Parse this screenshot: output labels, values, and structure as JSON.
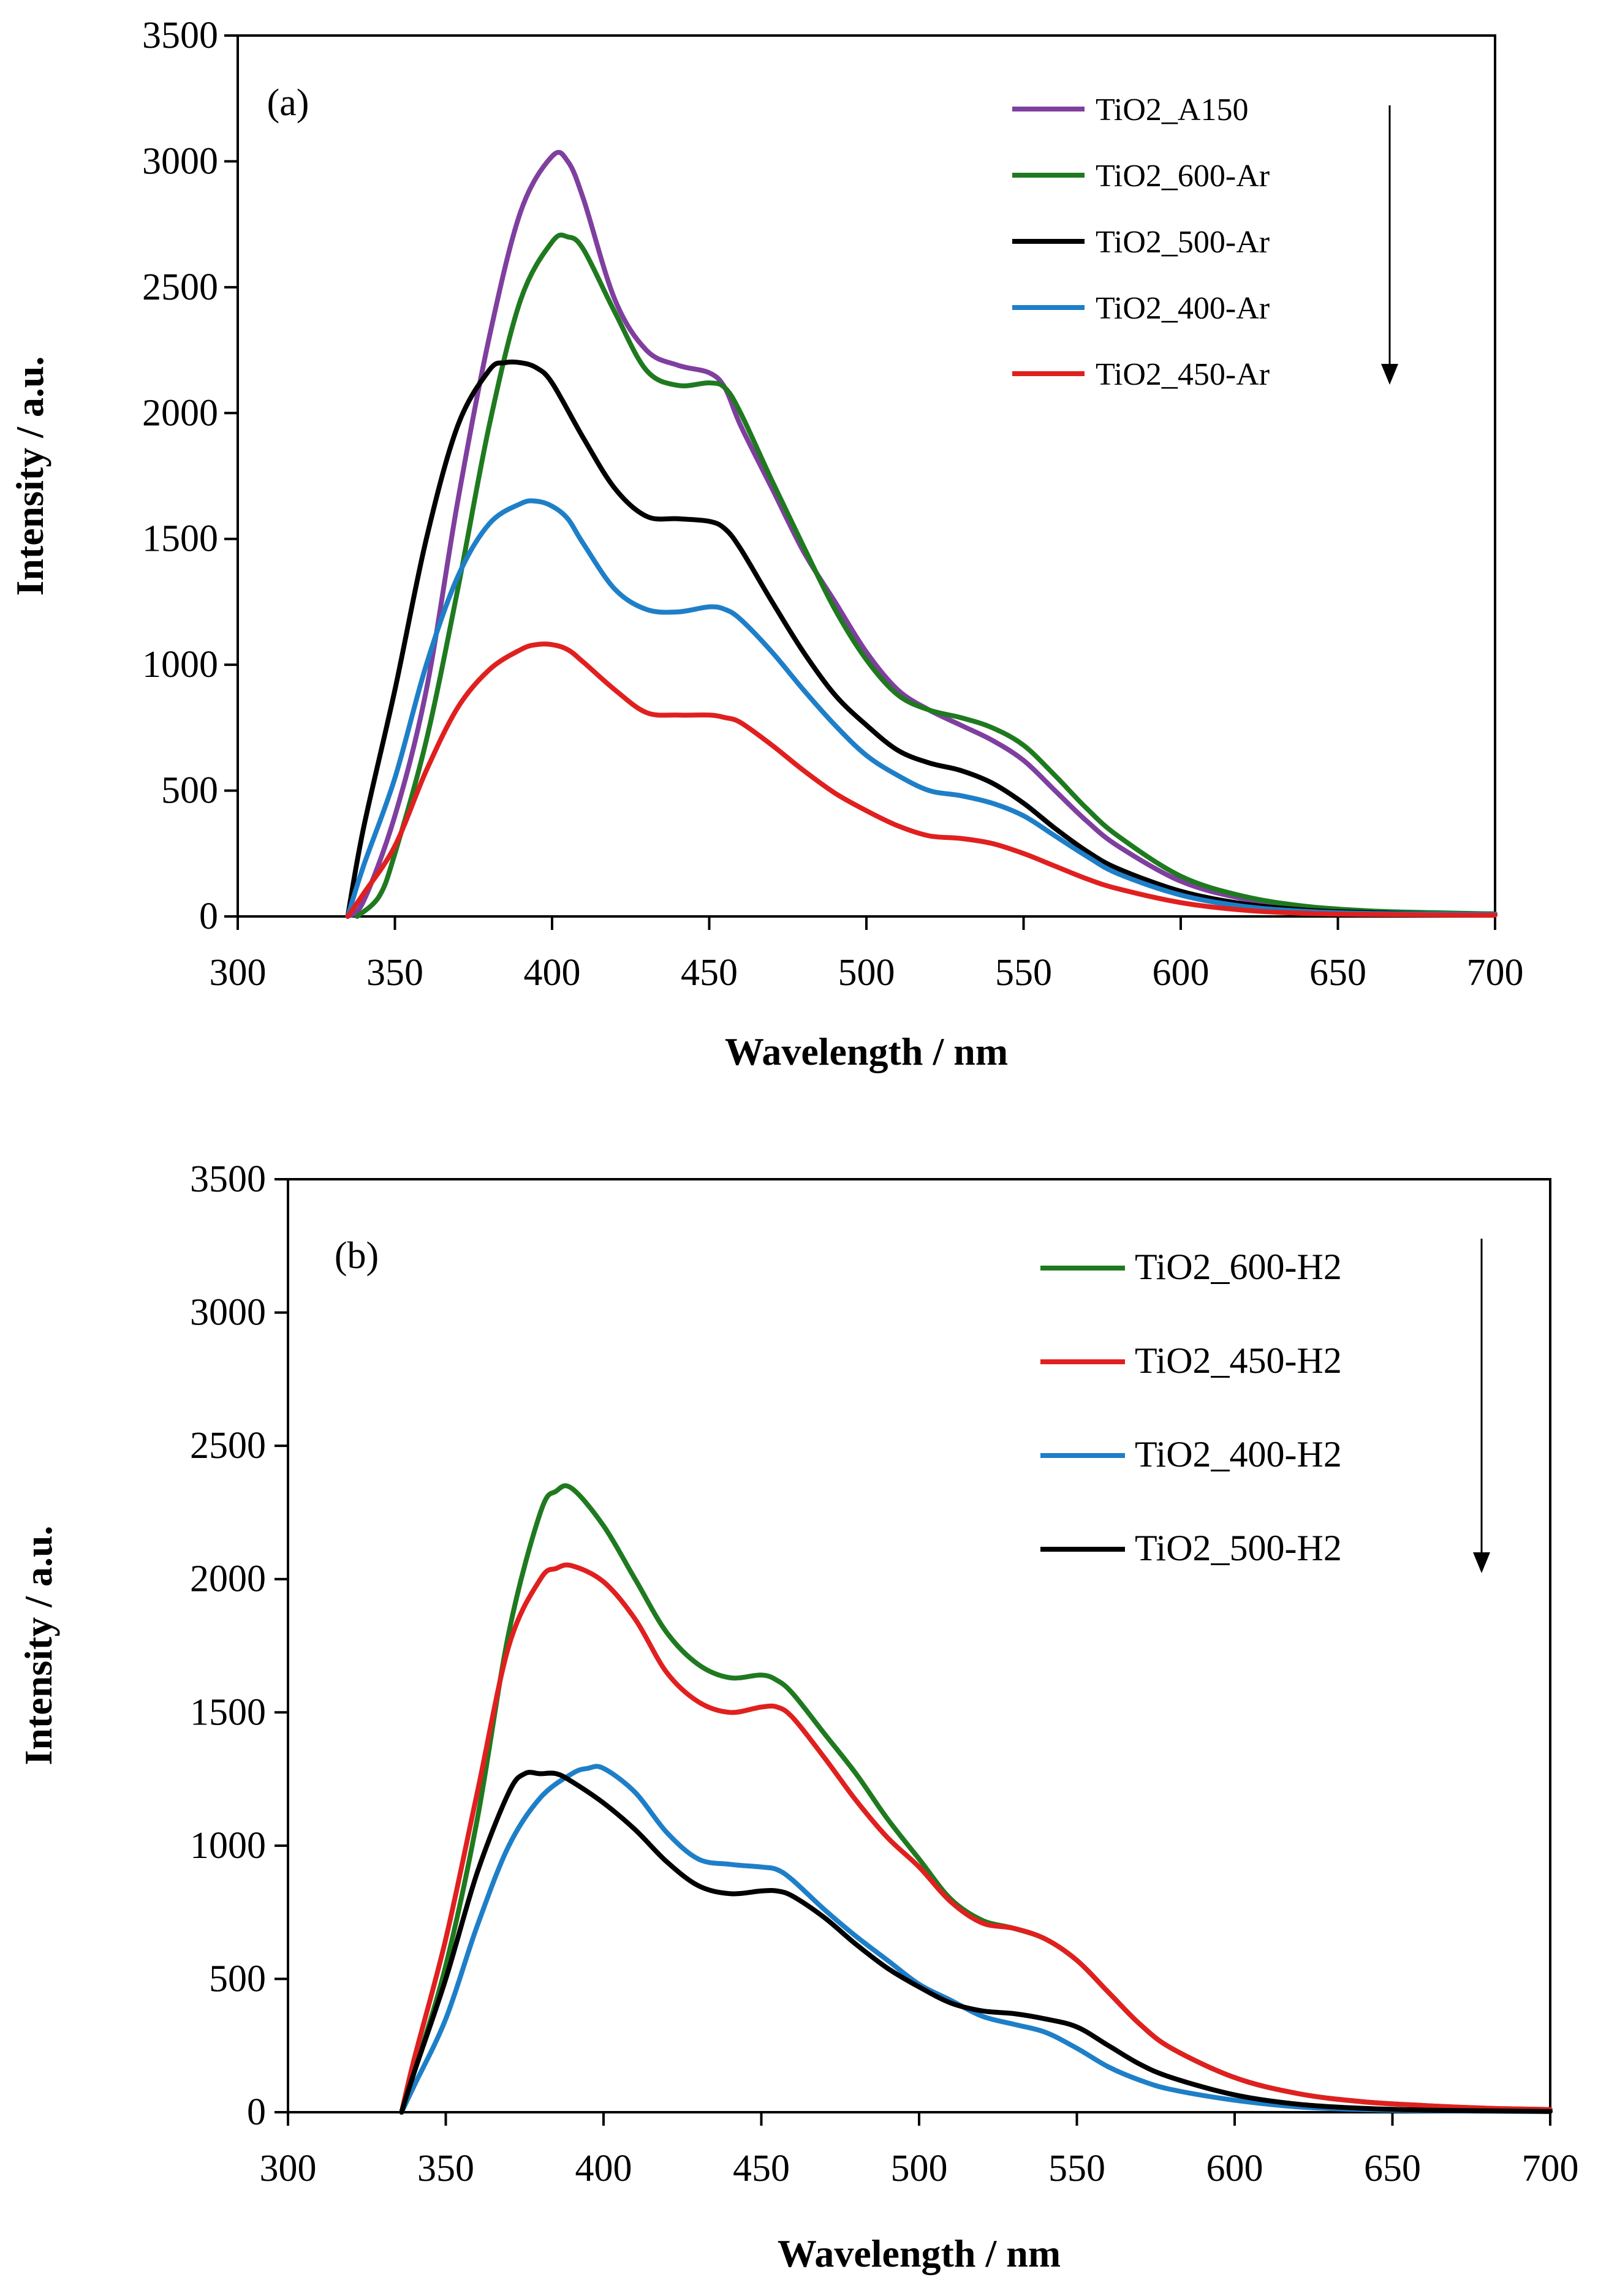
{
  "chart_data": [
    {
      "panel": "(a)",
      "type": "line",
      "xlabel": "Wavelength / nm",
      "ylabel": "Intensity / a.u.",
      "xlim": [
        300,
        700
      ],
      "ylim": [
        0,
        3500
      ],
      "xticks": [
        300,
        350,
        400,
        450,
        500,
        550,
        600,
        650,
        700
      ],
      "yticks": [
        0,
        500,
        1000,
        1500,
        2000,
        2500,
        3000,
        3500
      ],
      "grid": false,
      "legend_position": "top-right",
      "legend_arrow": "downward arrow to the right of legend",
      "series": [
        {
          "name": "TiO2_A150",
          "color": "#7f3f9f",
          "x": [
            335,
            340,
            350,
            360,
            370,
            380,
            390,
            400,
            405,
            410,
            420,
            430,
            440,
            450,
            455,
            460,
            470,
            480,
            490,
            500,
            510,
            520,
            530,
            540,
            550,
            560,
            570,
            580,
            600,
            620,
            640,
            660,
            680,
            700
          ],
          "y": [
            0,
            60,
            400,
            900,
            1650,
            2300,
            2800,
            3020,
            3000,
            2850,
            2450,
            2250,
            2190,
            2160,
            2100,
            1950,
            1700,
            1450,
            1250,
            1050,
            900,
            820,
            760,
            700,
            620,
            500,
            380,
            280,
            140,
            70,
            35,
            20,
            12,
            10
          ]
        },
        {
          "name": "TiO2_600-Ar",
          "color": "#1f7a1f",
          "x": [
            338,
            345,
            350,
            360,
            370,
            380,
            390,
            400,
            405,
            410,
            420,
            430,
            440,
            450,
            455,
            460,
            470,
            480,
            490,
            500,
            510,
            520,
            530,
            540,
            550,
            560,
            570,
            580,
            600,
            620,
            640,
            660,
            680,
            700
          ],
          "y": [
            0,
            80,
            250,
            700,
            1300,
            1950,
            2450,
            2680,
            2700,
            2650,
            2400,
            2170,
            2110,
            2120,
            2100,
            2000,
            1730,
            1470,
            1220,
            1020,
            880,
            820,
            790,
            750,
            680,
            560,
            430,
            320,
            160,
            80,
            40,
            22,
            15,
            10
          ]
        },
        {
          "name": "TiO2_500-Ar",
          "color": "#000000",
          "x": [
            335,
            340,
            350,
            360,
            370,
            380,
            385,
            390,
            395,
            400,
            410,
            420,
            430,
            440,
            450,
            455,
            460,
            470,
            480,
            490,
            500,
            510,
            520,
            530,
            540,
            550,
            560,
            570,
            580,
            600,
            620,
            640,
            660,
            680,
            700
          ],
          "y": [
            0,
            350,
            900,
            1500,
            1950,
            2170,
            2200,
            2200,
            2180,
            2120,
            1900,
            1700,
            1590,
            1580,
            1570,
            1540,
            1460,
            1250,
            1050,
            880,
            760,
            660,
            610,
            580,
            530,
            450,
            350,
            260,
            190,
            100,
            50,
            25,
            15,
            10,
            8
          ]
        },
        {
          "name": "TiO2_400-Ar",
          "color": "#1e7fc8",
          "x": [
            335,
            340,
            350,
            360,
            370,
            380,
            390,
            395,
            400,
            405,
            410,
            420,
            430,
            440,
            450,
            455,
            460,
            470,
            480,
            490,
            500,
            510,
            520,
            530,
            540,
            550,
            560,
            570,
            580,
            600,
            620,
            640,
            660,
            680,
            700
          ],
          "y": [
            0,
            200,
            550,
            1000,
            1350,
            1560,
            1640,
            1650,
            1630,
            1580,
            1480,
            1300,
            1220,
            1210,
            1230,
            1220,
            1180,
            1050,
            900,
            760,
            640,
            560,
            500,
            480,
            450,
            400,
            320,
            240,
            170,
            85,
            40,
            20,
            12,
            10,
            8
          ]
        },
        {
          "name": "TiO2_450-Ar",
          "color": "#e0201f",
          "x": [
            335,
            340,
            350,
            360,
            370,
            380,
            390,
            395,
            400,
            405,
            410,
            420,
            430,
            440,
            450,
            455,
            460,
            470,
            480,
            490,
            500,
            510,
            520,
            530,
            540,
            550,
            560,
            570,
            580,
            600,
            620,
            640,
            660,
            680,
            700
          ],
          "y": [
            0,
            90,
            280,
            580,
            830,
            980,
            1060,
            1080,
            1080,
            1060,
            1010,
            900,
            810,
            800,
            800,
            790,
            770,
            680,
            580,
            490,
            420,
            360,
            320,
            310,
            290,
            250,
            200,
            150,
            110,
            55,
            25,
            12,
            8,
            6,
            5
          ]
        }
      ]
    },
    {
      "panel": "(b)",
      "type": "line",
      "xlabel": "Wavelength / nm",
      "ylabel": "Intensity / a.u.",
      "xlim": [
        300,
        700
      ],
      "ylim": [
        0,
        3500
      ],
      "xticks": [
        300,
        350,
        400,
        450,
        500,
        550,
        600,
        650,
        700
      ],
      "yticks": [
        0,
        500,
        1000,
        1500,
        2000,
        2500,
        3000,
        3500
      ],
      "grid": false,
      "legend_position": "top-right",
      "legend_arrow": "downward arrow to the right of legend",
      "series": [
        {
          "name": "TiO2_600-H2",
          "color": "#1f7a1f",
          "x": [
            336,
            340,
            350,
            360,
            370,
            380,
            385,
            390,
            400,
            410,
            420,
            430,
            440,
            450,
            455,
            460,
            470,
            480,
            490,
            500,
            510,
            520,
            530,
            540,
            550,
            560,
            570,
            580,
            600,
            620,
            640,
            660,
            680,
            700
          ],
          "y": [
            0,
            150,
            550,
            1100,
            1800,
            2250,
            2330,
            2340,
            2200,
            2000,
            1800,
            1680,
            1630,
            1640,
            1620,
            1570,
            1420,
            1270,
            1100,
            950,
            800,
            720,
            690,
            650,
            570,
            450,
            330,
            240,
            130,
            70,
            40,
            25,
            15,
            10
          ]
        },
        {
          "name": "TiO2_450-H2",
          "color": "#e0201f",
          "x": [
            336,
            340,
            350,
            360,
            370,
            380,
            385,
            390,
            400,
            410,
            420,
            430,
            440,
            450,
            455,
            460,
            470,
            480,
            490,
            500,
            510,
            520,
            530,
            540,
            550,
            560,
            570,
            580,
            600,
            620,
            640,
            660,
            680,
            700
          ],
          "y": [
            0,
            200,
            650,
            1200,
            1750,
            2000,
            2040,
            2050,
            1990,
            1850,
            1650,
            1540,
            1500,
            1520,
            1520,
            1480,
            1330,
            1170,
            1030,
            920,
            790,
            710,
            690,
            650,
            570,
            450,
            330,
            240,
            130,
            70,
            40,
            25,
            15,
            10
          ]
        },
        {
          "name": "TiO2_400-H2",
          "color": "#1e7fc8",
          "x": [
            336,
            340,
            350,
            360,
            370,
            380,
            390,
            395,
            400,
            410,
            420,
            430,
            440,
            450,
            455,
            460,
            470,
            480,
            490,
            500,
            510,
            520,
            530,
            540,
            550,
            560,
            570,
            580,
            600,
            620,
            640,
            660,
            680,
            700
          ],
          "y": [
            0,
            100,
            350,
            700,
            1000,
            1180,
            1270,
            1290,
            1290,
            1200,
            1050,
            950,
            930,
            920,
            910,
            870,
            760,
            660,
            570,
            480,
            420,
            360,
            330,
            300,
            240,
            170,
            120,
            85,
            45,
            20,
            10,
            6,
            4,
            3
          ]
        },
        {
          "name": "TiO2_500-H2",
          "color": "#000000",
          "x": [
            336,
            340,
            350,
            360,
            370,
            375,
            380,
            385,
            390,
            400,
            410,
            420,
            430,
            440,
            450,
            455,
            460,
            470,
            480,
            490,
            500,
            510,
            520,
            530,
            540,
            550,
            560,
            570,
            580,
            600,
            620,
            640,
            660,
            680,
            700
          ],
          "y": [
            0,
            150,
            500,
            900,
            1200,
            1270,
            1270,
            1270,
            1240,
            1160,
            1060,
            940,
            850,
            820,
            830,
            830,
            810,
            730,
            630,
            540,
            470,
            410,
            380,
            370,
            350,
            320,
            250,
            180,
            130,
            65,
            30,
            15,
            8,
            5,
            3
          ]
        }
      ]
    }
  ]
}
